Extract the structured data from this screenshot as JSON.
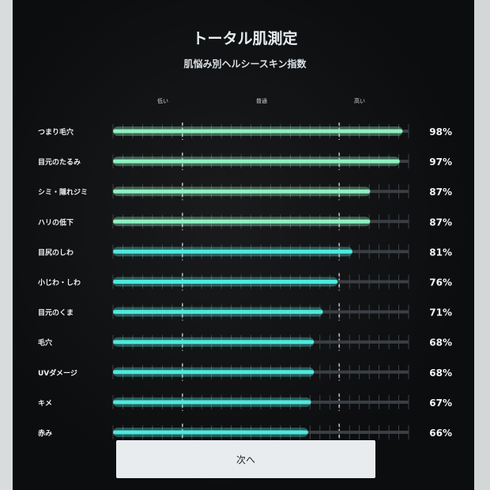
{
  "chart_data": {
    "type": "bar",
    "orientation": "horizontal",
    "title": "トータル肌測定",
    "subtitle": "肌悩み別ヘルシースキン指数",
    "level_labels": [
      "低い",
      "普通",
      "高い"
    ],
    "categories": [
      "つまり毛穴",
      "目元のたるみ",
      "シミ・隠れジミ",
      "ハリの低下",
      "目尻のしわ",
      "小じわ・しわ",
      "目元のくま",
      "毛穴",
      "UVダメージ",
      "キメ",
      "赤み"
    ],
    "values": [
      98,
      97,
      87,
      87,
      81,
      76,
      71,
      68,
      68,
      67,
      66
    ],
    "value_labels": [
      "98%",
      "97%",
      "87%",
      "87%",
      "81%",
      "76%",
      "71%",
      "68%",
      "68%",
      "67%",
      "66%"
    ],
    "xlim": [
      0,
      100
    ],
    "colors": {
      "bar_high": "#8ef0c0",
      "bar_low": "#4fe8dc",
      "track": "#3a3f44",
      "background": "#0c0d0f"
    }
  },
  "button": {
    "next_label": "次へ"
  }
}
